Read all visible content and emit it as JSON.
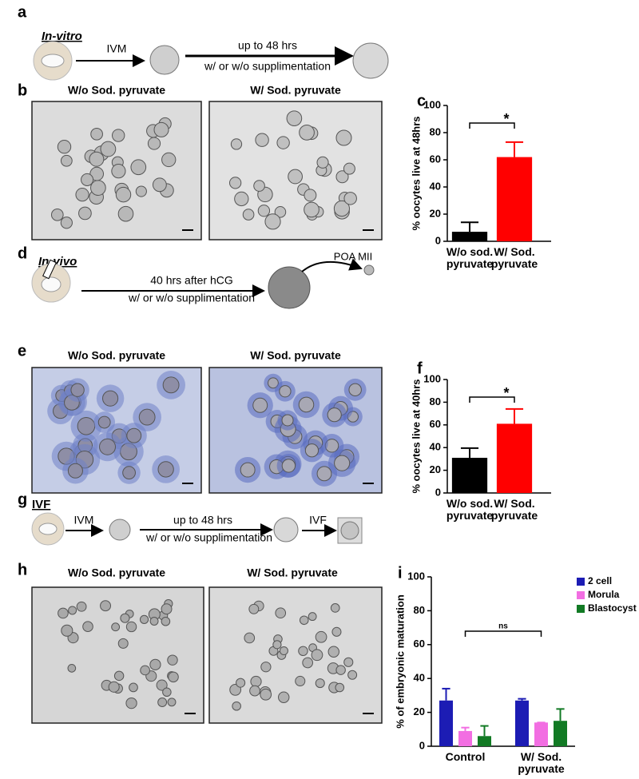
{
  "panel_a": {
    "label": "a",
    "title": "In-vitro",
    "arrow_1": "IVM",
    "arrow_2_top": "up to 48 hrs",
    "arrow_2_bottom": "w/ or w/o supplimentation"
  },
  "panel_b": {
    "label": "b",
    "image_titles": [
      "W/o Sod. pyruvate",
      "W/ Sod. pyruvate"
    ]
  },
  "panel_d": {
    "label": "d",
    "title": "In-vivo",
    "arrow_top": "40 hrs after hCG",
    "arrow_bottom": "w/ or w/o supplimentation",
    "oocyte_label": "POA MII"
  },
  "panel_e": {
    "label": "e",
    "image_titles": [
      "W/o Sod. pyruvate",
      "W/ Sod. pyruvate"
    ]
  },
  "panel_g": {
    "label": "g",
    "title": "IVF",
    "arrow_1": "IVM",
    "arrow_2_top": "up to 48 hrs",
    "arrow_2_bottom": "w/ or w/o supplimentation",
    "arrow_3": "IVF"
  },
  "panel_h": {
    "label": "h",
    "image_titles": [
      "W/o Sod. pyruvate",
      "W/ Sod. pyruvate"
    ]
  },
  "chart_data": [
    {
      "panel_label": "c",
      "type": "bar",
      "ylabel": "% oocytes live at 48hrs",
      "categories": [
        "W/o sod. pyruvate",
        "W/ Sod. pyruvate"
      ],
      "values": [
        7,
        62
      ],
      "errors": [
        7,
        11
      ],
      "colors": [
        "#000000",
        "#ff0000"
      ],
      "ylim": [
        0,
        100
      ],
      "yticks": [
        0,
        20,
        40,
        60,
        80,
        100
      ],
      "annotation": "*"
    },
    {
      "panel_label": "f",
      "type": "bar",
      "ylabel": "% oocytes live at 40hrs",
      "categories": [
        "W/o sod. pyruvate",
        "W/ Sod. pyruvate"
      ],
      "values": [
        31,
        61
      ],
      "errors": [
        8.5,
        13
      ],
      "colors": [
        "#000000",
        "#ff0000"
      ],
      "ylim": [
        0,
        100
      ],
      "yticks": [
        0,
        20,
        40,
        60,
        80,
        100
      ],
      "annotation": "*"
    },
    {
      "panel_label": "i",
      "type": "bar",
      "ylabel": "% of embryonic maturation",
      "categories": [
        "Control",
        "W/ Sod. pyruvate"
      ],
      "series": [
        {
          "name": "2 cell",
          "color": "#1c1cb4",
          "values": [
            27,
            27
          ],
          "errors": [
            7,
            1
          ]
        },
        {
          "name": "Morula",
          "color": "#f26ee2",
          "values": [
            9,
            14
          ],
          "errors": [
            2,
            0
          ]
        },
        {
          "name": "Blastocyst",
          "color": "#127a24",
          "values": [
            6,
            15
          ],
          "errors": [
            6,
            7
          ]
        }
      ],
      "ylim": [
        0,
        100
      ],
      "yticks": [
        0,
        20,
        40,
        60,
        80,
        100
      ],
      "annotation": "ns",
      "legend": "upper right"
    }
  ]
}
